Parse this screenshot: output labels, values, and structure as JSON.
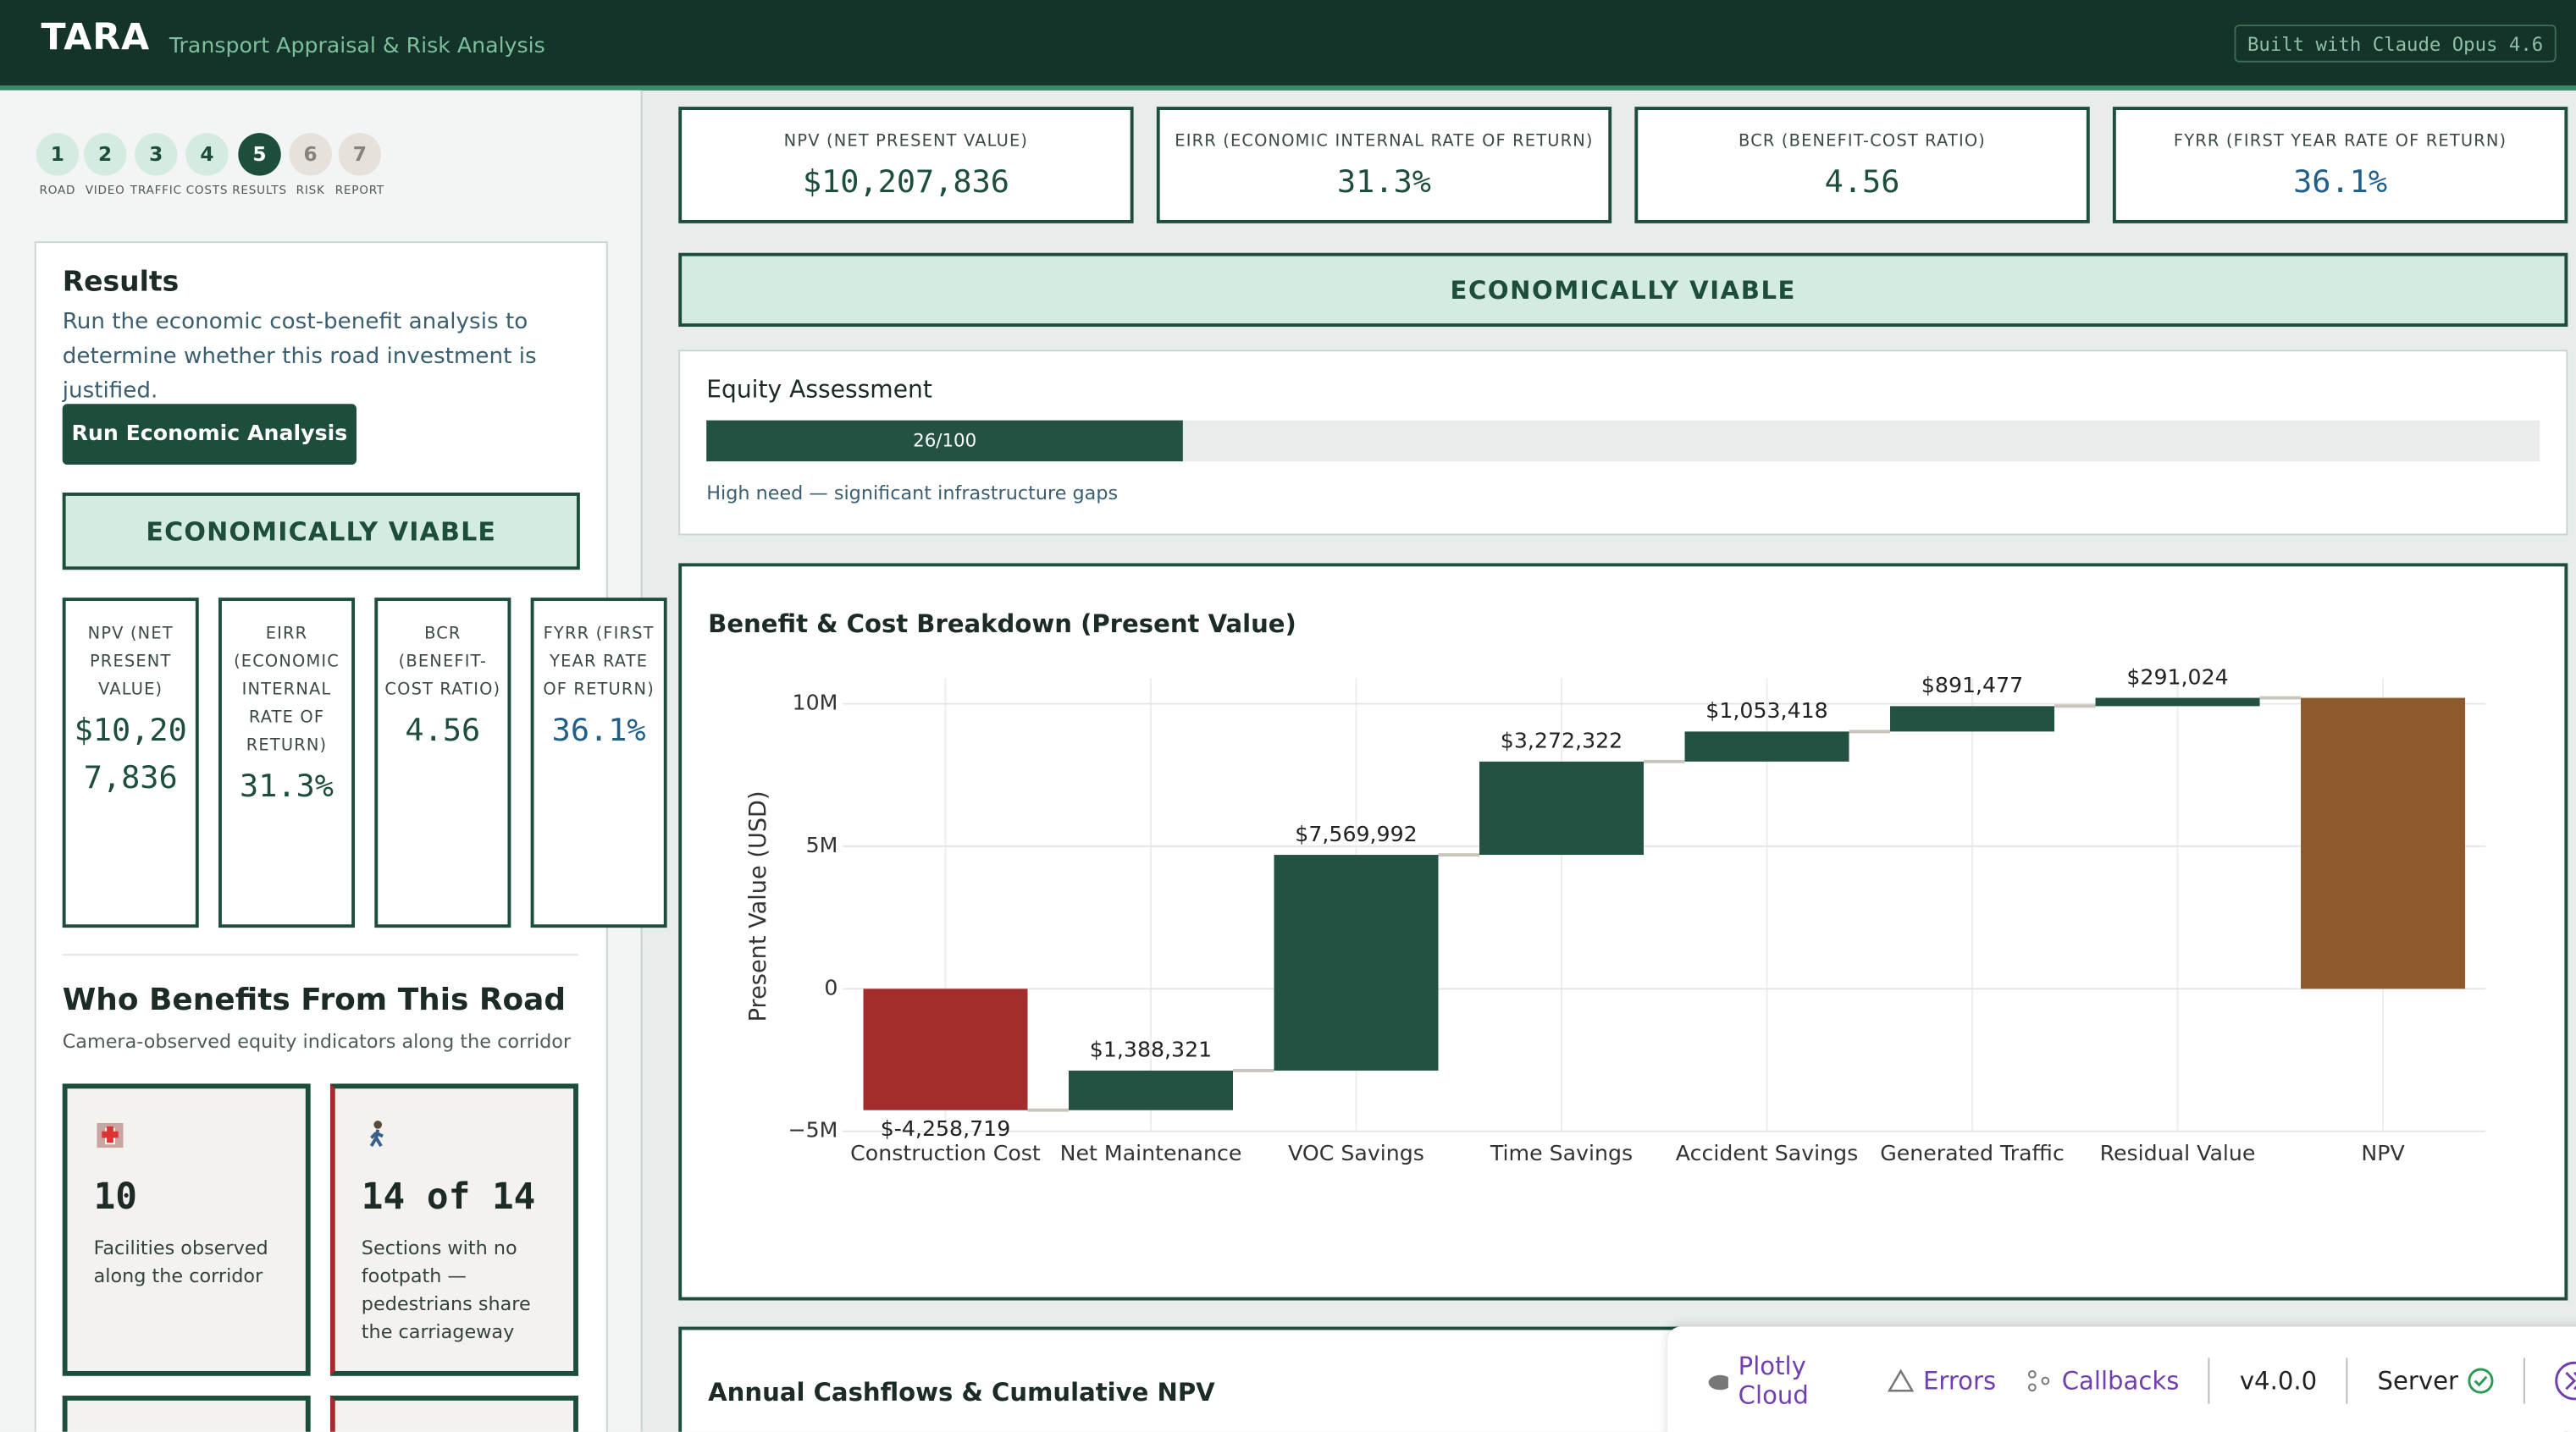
{
  "header": {
    "title": "TARA",
    "subtitle": "Transport Appraisal & Risk Analysis",
    "badge": "Built with Claude Opus 4.6"
  },
  "steps": [
    {
      "number": "1",
      "label": "ROAD"
    },
    {
      "number": "2",
      "label": "VIDEO"
    },
    {
      "number": "3",
      "label": "TRAFFIC"
    },
    {
      "number": "4",
      "label": "COSTS"
    },
    {
      "number": "5",
      "label": "RESULTS"
    },
    {
      "number": "6",
      "label": "RISK"
    },
    {
      "number": "7",
      "label": "REPORT"
    }
  ],
  "sidebar": {
    "title": "Results",
    "description": "Run the economic cost-benefit analysis to determine whether this road investment is justified.",
    "button": "Run Economic Analysis",
    "verdict": "ECONOMICALLY VIABLE",
    "metrics": [
      {
        "label": "NPV (NET PRESENT VALUE)",
        "value": "$10,207,836"
      },
      {
        "label": "EIRR (ECONOMIC INTERNAL RATE OF RETURN)",
        "value": "31.3%"
      },
      {
        "label": "BCR (BENEFIT-COST RATIO)",
        "value": "4.56"
      },
      {
        "label": "FYRR (FIRST YEAR RATE OF RETURN)",
        "value": "36.1%"
      }
    ],
    "benefits": {
      "title": "Who Benefits From This Road",
      "subtitle": "Camera-observed equity indicators along the corridor",
      "cards": [
        {
          "value": "10",
          "text": "Facilities observed along the corridor"
        },
        {
          "value": "14 of 14",
          "text": "Sections with no footpath — pedestrians share the carriageway"
        }
      ]
    }
  },
  "main": {
    "metrics": [
      {
        "label": "NPV (NET PRESENT VALUE)",
        "value": "$10,207,836"
      },
      {
        "label": "EIRR (ECONOMIC INTERNAL RATE OF RETURN)",
        "value": "31.3%"
      },
      {
        "label": "BCR (BENEFIT-COST RATIO)",
        "value": "4.56"
      },
      {
        "label": "FYRR (FIRST YEAR RATE OF RETURN)",
        "value": "36.1%"
      }
    ],
    "verdict": "ECONOMICALLY VIABLE",
    "equity": {
      "title": "Equity Assessment",
      "score": {
        "value": 26,
        "label": "26/100"
      },
      "max": 100,
      "note": "High need — significant infrastructure gaps"
    },
    "cashflow_title": "Annual Cashflows & Cumulative NPV"
  },
  "chart_data": {
    "type": "waterfall",
    "title": "Benefit & Cost Breakdown (Present Value)",
    "y_label": "Present Value (USD)",
    "categories": [
      "Construction Cost",
      "Net Maintenance",
      "VOC Savings",
      "Time Savings",
      "Accident Savings",
      "Generated Traffic",
      "Residual Value",
      "NPV"
    ],
    "measures": [
      "relative",
      "relative",
      "relative",
      "relative",
      "relative",
      "relative",
      "relative",
      "total"
    ],
    "values": [
      -4258719,
      1388321,
      7569992,
      3272322,
      1053418,
      891477,
      291024,
      10207836
    ],
    "value_labels": [
      "$-4,258,719",
      "$1,388,321",
      "$7,569,992",
      "$3,272,322",
      "$1,053,418",
      "$891,477",
      "$291,024",
      null
    ],
    "colors": {
      "increasing": "#245242",
      "decreasing": "#a32d2d",
      "total": "#8e5a2c"
    },
    "ylim": [
      -5000000,
      10900000
    ],
    "yticks": [
      {
        "value": -5000000,
        "label": "−5M"
      },
      0,
      {
        "value": 5000000,
        "label": "5M"
      },
      {
        "value": 10000000,
        "label": "10M"
      }
    ],
    "grid": true
  },
  "devtools": {
    "items": [
      "Plotly Cloud",
      "Errors",
      "Callbacks"
    ],
    "version": "v4.0.0",
    "server": "Server"
  }
}
